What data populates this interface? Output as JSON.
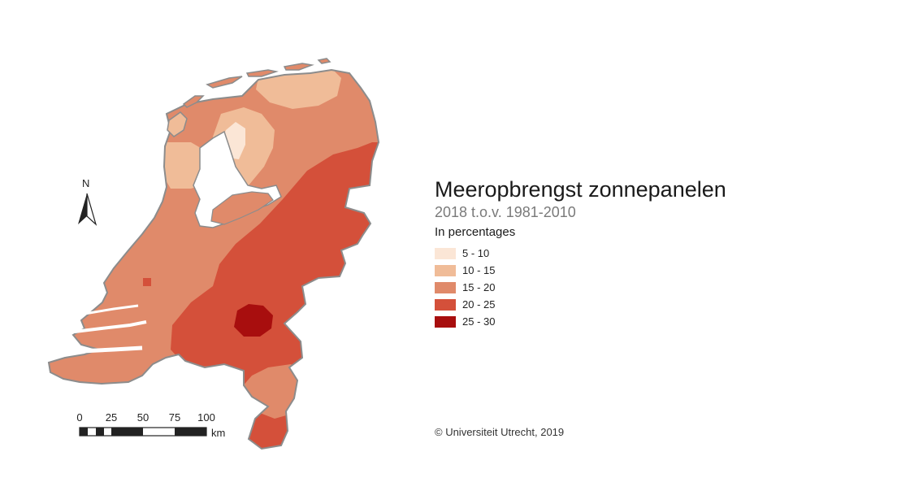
{
  "title": "Meeropbrengst zonnepanelen",
  "subtitle": "2018 t.o.v. 1981-2010",
  "legend": {
    "title": "In percentages",
    "items": [
      {
        "label": "5 - 10",
        "color": "#fbe6d6"
      },
      {
        "label": "10 - 15",
        "color": "#f0bc98"
      },
      {
        "label": "15 - 20",
        "color": "#e08a6a"
      },
      {
        "label": "20 - 25",
        "color": "#d4503a"
      },
      {
        "label": "25 - 30",
        "color": "#a80e0e"
      }
    ]
  },
  "north_arrow": {
    "label": "N"
  },
  "scalebar": {
    "ticks": [
      "0",
      "25",
      "50",
      "75",
      "100"
    ],
    "unit": "km"
  },
  "credit": "© Universiteit Utrecht, 2019",
  "colors": {
    "outline": "#8c8c8c",
    "water": "#ffffff"
  }
}
